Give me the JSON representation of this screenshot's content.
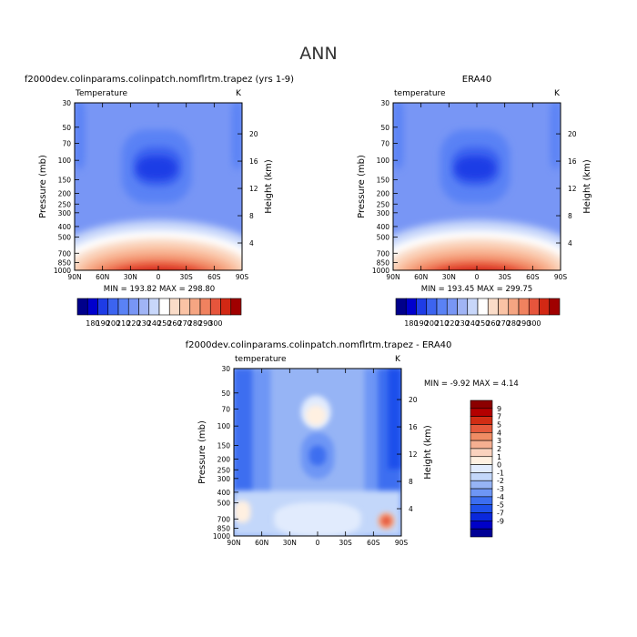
{
  "page": {
    "title": "ANN"
  },
  "colors": {
    "abs_levels": [
      "#00008B",
      "#0000CD",
      "#1E3CE6",
      "#3C64F0",
      "#5A82F5",
      "#7896F5",
      "#A0B4F5",
      "#C8D7FA",
      "#FFFFFF",
      "#FADCC8",
      "#FAC3A5",
      "#F5A582",
      "#F0825F",
      "#E6553C",
      "#D22814",
      "#A00000"
    ],
    "diff_levels": [
      "#000096",
      "#0000C8",
      "#0A28DC",
      "#1E50EB",
      "#3C6EF0",
      "#6E96F5",
      "#96B4F5",
      "#C3D7FA",
      "#E1EBFD",
      "#FFF0E1",
      "#FAD2BE",
      "#F5AF91",
      "#F08C64",
      "#E65A3C",
      "#D22D14",
      "#B40000",
      "#8C0000"
    ]
  },
  "chart_data": [
    {
      "id": "model",
      "type": "contour",
      "title": "f2000dev.colinparams.colinpatch.nomflrtm.trapez (yrs 1-9)",
      "subtitle_left": "Temperature",
      "subtitle_right": "K",
      "xlabel": "",
      "ylabel": "Pressure (mb)",
      "ylabel_right": "Height (km)",
      "x_ticks": [
        "90N",
        "60N",
        "30N",
        "0",
        "30S",
        "60S",
        "90S"
      ],
      "x_values": [
        90,
        60,
        30,
        0,
        -30,
        -60,
        -90
      ],
      "y_ticks": [
        "30",
        "50",
        "70",
        "100",
        "150",
        "200",
        "250",
        "300",
        "400",
        "500",
        "700",
        "850",
        "1000"
      ],
      "y_values": [
        30,
        50,
        70,
        100,
        150,
        200,
        250,
        300,
        400,
        500,
        700,
        850,
        1000
      ],
      "y_range": [
        30,
        1000
      ],
      "height_ticks": [
        "4",
        "8",
        "12",
        "16",
        "20"
      ],
      "height_values": [
        4,
        8,
        12,
        16,
        20
      ],
      "min": 193.82,
      "max": 298.8,
      "minmax_label": "MIN = 193.82   MAX = 298.80",
      "colorbar_labels": [
        "180",
        "190",
        "200",
        "210",
        "220",
        "230",
        "240",
        "250",
        "260",
        "270",
        "280",
        "290",
        "300"
      ]
    },
    {
      "id": "obs",
      "type": "contour",
      "title": "ERA40",
      "subtitle_left": "temperature",
      "subtitle_right": "K",
      "xlabel": "",
      "ylabel": "Pressure (mb)",
      "ylabel_right": "Height (km)",
      "x_ticks": [
        "90N",
        "60N",
        "30N",
        "0",
        "30S",
        "60S",
        "90S"
      ],
      "x_values": [
        90,
        60,
        30,
        0,
        -30,
        -60,
        -90
      ],
      "y_ticks": [
        "30",
        "50",
        "70",
        "100",
        "150",
        "200",
        "250",
        "300",
        "400",
        "500",
        "700",
        "850",
        "1000"
      ],
      "y_values": [
        30,
        50,
        70,
        100,
        150,
        200,
        250,
        300,
        400,
        500,
        700,
        850,
        1000
      ],
      "y_range": [
        30,
        1000
      ],
      "height_ticks": [
        "4",
        "8",
        "12",
        "16",
        "20"
      ],
      "height_values": [
        4,
        8,
        12,
        16,
        20
      ],
      "min": 193.45,
      "max": 299.75,
      "minmax_label": "MIN = 193.45   MAX = 299.75",
      "colorbar_labels": [
        "180",
        "190",
        "200",
        "210",
        "220",
        "230",
        "240",
        "250",
        "260",
        "270",
        "280",
        "290",
        "300"
      ]
    },
    {
      "id": "diff",
      "type": "contour",
      "title": "f2000dev.colinparams.colinpatch.nomflrtm.trapez - ERA40",
      "subtitle_left": "temperature",
      "subtitle_right": "K",
      "xlabel": "",
      "ylabel": "Pressure (mb)",
      "ylabel_right": "Height (km)",
      "x_ticks": [
        "90N",
        "60N",
        "30N",
        "0",
        "30S",
        "60S",
        "90S"
      ],
      "x_values": [
        90,
        60,
        30,
        0,
        -30,
        -60,
        -90
      ],
      "y_ticks": [
        "30",
        "50",
        "70",
        "100",
        "150",
        "200",
        "250",
        "300",
        "400",
        "500",
        "700",
        "850",
        "1000"
      ],
      "y_values": [
        30,
        50,
        70,
        100,
        150,
        200,
        250,
        300,
        400,
        500,
        700,
        850,
        1000
      ],
      "y_range": [
        30,
        1000
      ],
      "height_ticks": [
        "4",
        "8",
        "12",
        "16",
        "20"
      ],
      "height_values": [
        4,
        8,
        12,
        16,
        20
      ],
      "min": -9.92,
      "max": 4.14,
      "minmax_label": "MIN =   -9.92  MAX =    4.14",
      "colorbar_labels": [
        "9",
        "7",
        "5",
        "4",
        "3",
        "2",
        "1",
        "0",
        "-1",
        "-2",
        "-3",
        "-4",
        "-5",
        "-7",
        "-9"
      ]
    }
  ]
}
